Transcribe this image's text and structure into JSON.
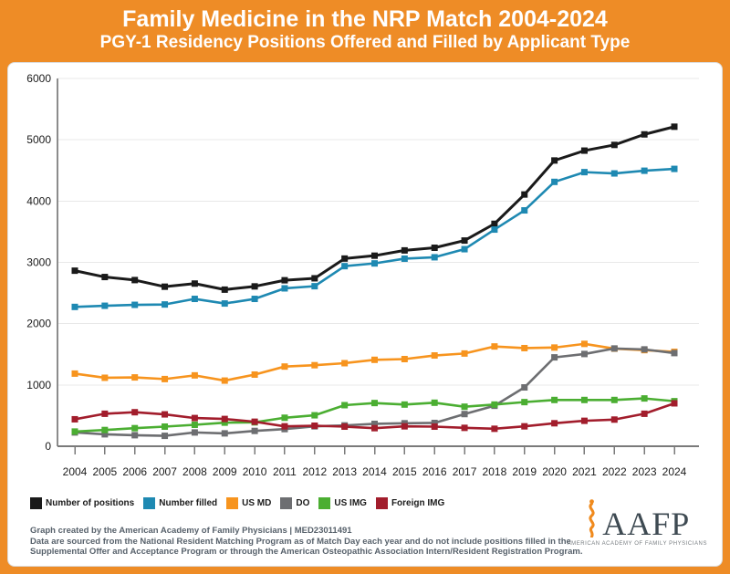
{
  "header": {
    "title": "Family Medicine in the NRP Match 2004-2024",
    "subtitle": "PGY-1 Residency Positions Offered and Filled by Applicant Type"
  },
  "chart_data": {
    "type": "line",
    "x": [
      2004,
      2005,
      2006,
      2007,
      2008,
      2009,
      2010,
      2011,
      2012,
      2013,
      2014,
      2015,
      2016,
      2017,
      2018,
      2019,
      2020,
      2021,
      2022,
      2023,
      2024
    ],
    "series": [
      {
        "name": "Number of positions",
        "color": "#1A1A1A",
        "values": [
          2864,
          2761,
          2711,
          2603,
          2654,
          2555,
          2608,
          2708,
          2740,
          3062,
          3109,
          3195,
          3238,
          3356,
          3629,
          4107,
          4662,
          4823,
          4916,
          5088,
          5213
        ]
      },
      {
        "name": "Number filled",
        "color": "#1E89B2",
        "values": [
          2273,
          2292,
          2307,
          2313,
          2404,
          2329,
          2404,
          2576,
          2611,
          2938,
          2983,
          3060,
          3083,
          3215,
          3535,
          3848,
          4313,
          4472,
          4451,
          4495,
          4525
        ]
      },
      {
        "name": "US MD",
        "color": "#F7941E",
        "values": [
          1185,
          1117,
          1123,
          1096,
          1156,
          1071,
          1169,
          1300,
          1322,
          1355,
          1410,
          1422,
          1481,
          1513,
          1628,
          1601,
          1610,
          1670,
          1592,
          1568,
          1540
        ]
      },
      {
        "name": "DO",
        "color": "#6D6E71",
        "values": [
          225,
          195,
          180,
          170,
          225,
          210,
          250,
          280,
          325,
          340,
          365,
          375,
          380,
          525,
          660,
          960,
          1450,
          1505,
          1595,
          1580,
          1520
        ]
      },
      {
        "name": "US IMG",
        "color": "#4BAE32",
        "values": [
          240,
          265,
          295,
          320,
          350,
          385,
          390,
          465,
          505,
          670,
          705,
          680,
          710,
          645,
          680,
          720,
          755,
          755,
          755,
          780,
          735
        ]
      },
      {
        "name": "Foreign IMG",
        "color": "#A21D2C",
        "values": [
          440,
          530,
          555,
          520,
          460,
          445,
          400,
          325,
          335,
          320,
          295,
          325,
          320,
          300,
          285,
          325,
          375,
          415,
          435,
          530,
          700
        ]
      }
    ],
    "title": "Family Medicine in the NRP Match 2004-2024",
    "xlabel": "",
    "ylabel": "",
    "ylim": [
      0,
      6000
    ],
    "yticks": [
      0,
      1000,
      2000,
      3000,
      4000,
      5000,
      6000
    ],
    "grid": true,
    "legend_position": "bottom-left",
    "marker": "square"
  },
  "footer": {
    "line1": "Graph created by the American Academy of Family Physicians | MED23011491",
    "line2": "Data are sourced from the National Resident Matching Program as of Match Day each year and do not include positions filled in the",
    "line3": "Supplemental Offer and Acceptance Program or through the American Osteopathic Association Intern/Resident Registration Program."
  },
  "logo": {
    "acronym": "AAFP",
    "caption": "AMERICAN ACADEMY OF FAMILY PHYSICIANS"
  },
  "colors": {
    "brand_orange": "#EE8C26",
    "footer_text": "#57616B",
    "gridline": "#E8E8E8",
    "axis": "#7A7A7A"
  }
}
